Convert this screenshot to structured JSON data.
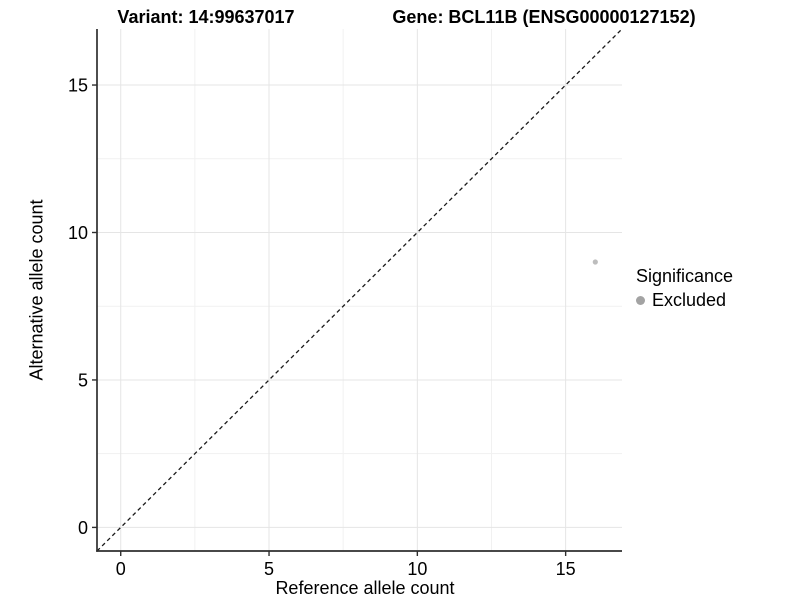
{
  "chart_data": {
    "type": "scatter",
    "title_left": "Variant: 14:99637017",
    "title_right": "Gene: BCL11B (ENSG00000127152)",
    "xlabel": "Reference allele count",
    "ylabel": "Alternative allele count",
    "xlim": [
      -0.8,
      16.9
    ],
    "ylim": [
      -0.8,
      16.9
    ],
    "xticks": [
      0,
      5,
      10,
      15
    ],
    "yticks": [
      0,
      5,
      10,
      15
    ],
    "xminor": [
      2.5,
      7.5,
      12.5
    ],
    "yminor": [
      2.5,
      7.5,
      12.5
    ],
    "grid": "major+minor",
    "identity_line": {
      "slope": 1,
      "intercept": 0,
      "style": "dashed",
      "color": "#1a1a1a"
    },
    "series": [
      {
        "name": "Excluded",
        "color": "#bdbdbd",
        "points": [
          {
            "x": 16,
            "y": 9
          }
        ]
      }
    ],
    "legend": {
      "title": "Significance",
      "position": "right",
      "entries": [
        {
          "label": "Excluded",
          "color": "#a3a3a3",
          "marker": "circle"
        }
      ]
    },
    "colors": {
      "axis": "#2e2e2e",
      "grid_major": "#e5e5e5",
      "grid_minor": "#f1f1f1",
      "background": "#ffffff",
      "text": "#000000"
    }
  }
}
